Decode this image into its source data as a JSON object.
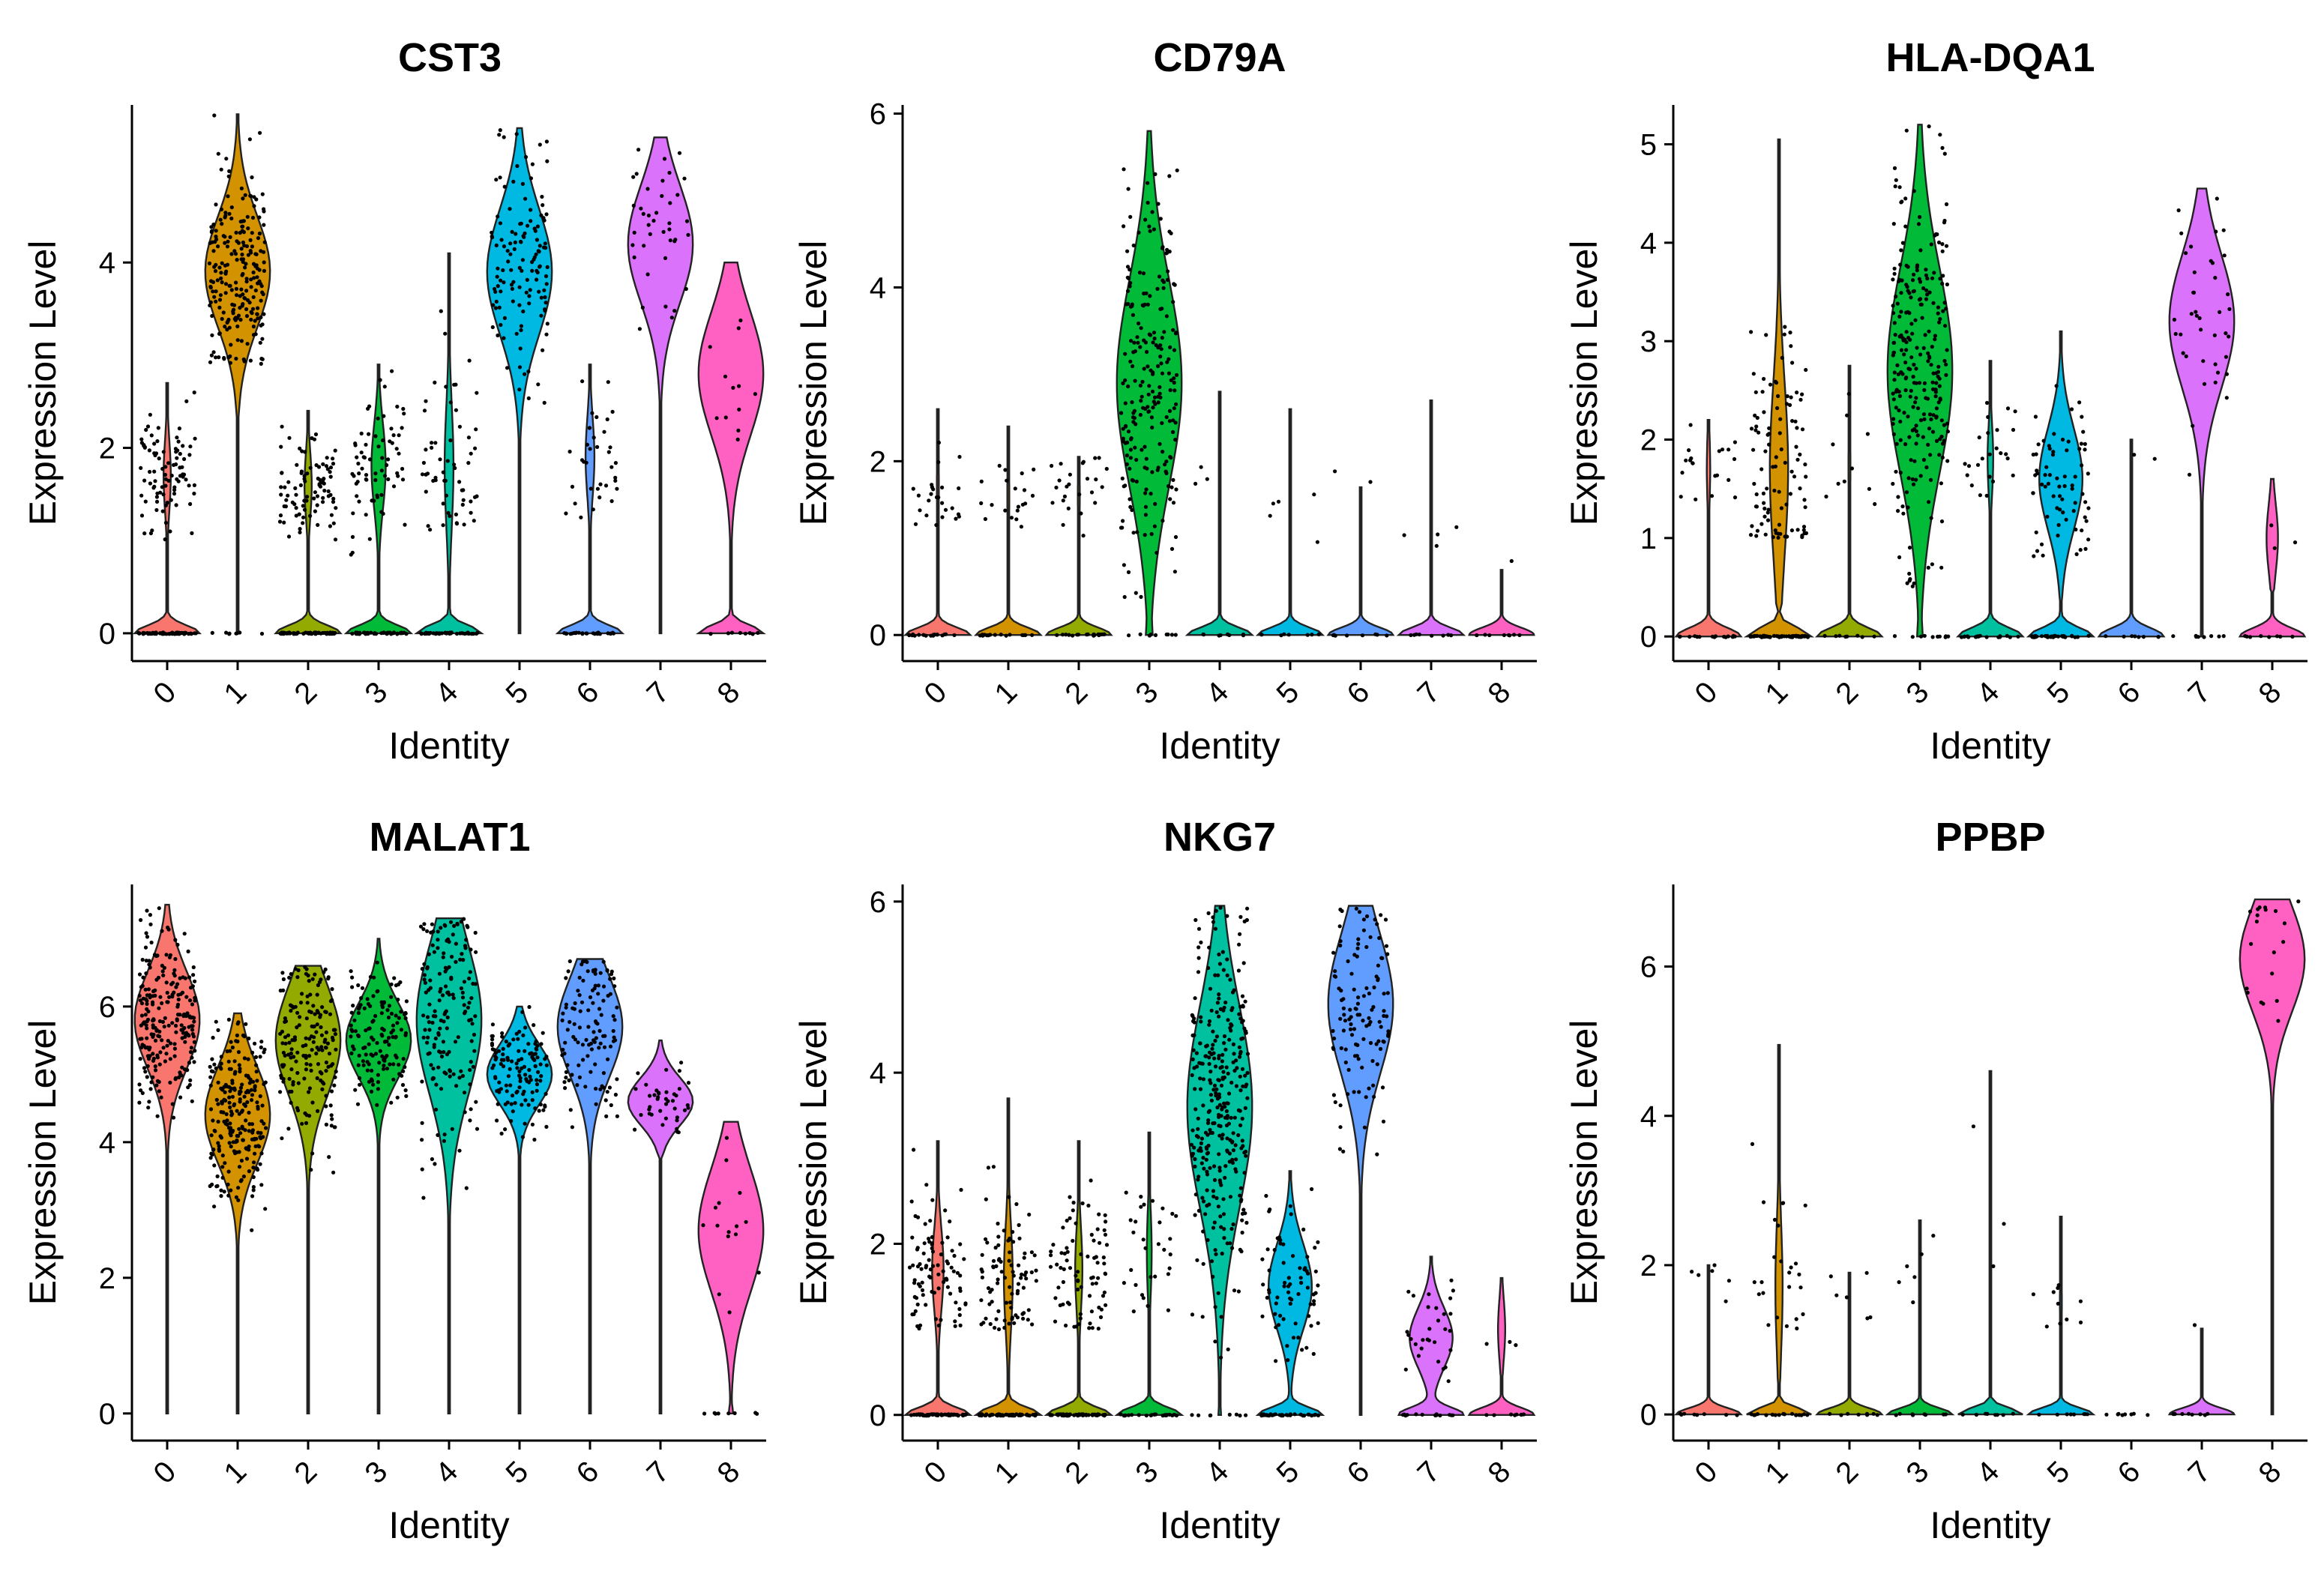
{
  "figure_title": "Violin plots of gene expression by cluster identity",
  "colors": {
    "0": "#F8766D",
    "1": "#D39200",
    "2": "#93AA00",
    "3": "#00BA38",
    "4": "#00C19F",
    "5": "#00B9E3",
    "6": "#619CFF",
    "7": "#DB72FB",
    "8": "#FF61C3"
  },
  "chart_data": [
    {
      "type": "violin",
      "title": "CST3",
      "xlabel": "Identity",
      "ylabel": "Expression Level",
      "categories": [
        "0",
        "1",
        "2",
        "3",
        "4",
        "5",
        "6",
        "7",
        "8"
      ],
      "ylim": [
        -0.3,
        5.7
      ],
      "yticks": [
        0,
        2,
        4
      ],
      "zero_fraction": [
        0.9,
        0.02,
        0.9,
        0.82,
        0.88,
        0.0,
        0.88,
        0.0,
        0.5
      ],
      "nonzero_median": [
        1.7,
        3.9,
        1.6,
        1.8,
        1.8,
        3.9,
        1.9,
        4.2,
        2.8
      ],
      "max": [
        2.7,
        5.6,
        2.4,
        2.9,
        4.1,
        5.45,
        2.9,
        5.35,
        4.0
      ],
      "min_nonzero": [
        1.0,
        2.9,
        1.0,
        0.8,
        1.1,
        2.4,
        1.0,
        2.5,
        1.0
      ],
      "n_points": [
        90,
        230,
        90,
        70,
        60,
        130,
        35,
        40,
        12
      ]
    },
    {
      "type": "violin",
      "title": "CD79A",
      "xlabel": "Identity",
      "ylabel": "Expression Level",
      "categories": [
        "0",
        "1",
        "2",
        "3",
        "4",
        "5",
        "6",
        "7",
        "8"
      ],
      "ylim": [
        -0.3,
        6.1
      ],
      "yticks": [
        0,
        2,
        4,
        6
      ],
      "zero_fraction": [
        0.97,
        0.97,
        0.97,
        0.05,
        0.99,
        0.98,
        0.99,
        0.98,
        0.98
      ],
      "nonzero_median": [
        1.7,
        1.6,
        1.6,
        2.9,
        1.9,
        1.3,
        1.7,
        1.1,
        0.75
      ],
      "max": [
        2.6,
        2.4,
        2.05,
        5.8,
        2.8,
        2.6,
        1.7,
        2.7,
        0.75
      ],
      "min_nonzero": [
        1.2,
        1.1,
        1.0,
        0.4,
        1.7,
        1.0,
        1.7,
        1.0,
        0.75
      ],
      "n_points": [
        25,
        20,
        25,
        230,
        3,
        5,
        2,
        4,
        1
      ]
    },
    {
      "type": "violin",
      "title": "HLA-DQA1",
      "xlabel": "Identity",
      "ylabel": "Expression Level",
      "categories": [
        "0",
        "1",
        "2",
        "3",
        "4",
        "5",
        "6",
        "7",
        "8"
      ],
      "ylim": [
        -0.25,
        5.4
      ],
      "yticks": [
        0,
        1,
        2,
        3,
        4,
        5
      ],
      "zero_fraction": [
        0.95,
        0.78,
        0.97,
        0.05,
        0.92,
        0.6,
        0.99,
        0.03,
        0.85
      ],
      "nonzero_median": [
        1.7,
        1.7,
        1.7,
        2.7,
        1.8,
        1.6,
        1.8,
        3.2,
        1.0
      ],
      "max": [
        2.2,
        5.05,
        2.75,
        5.2,
        2.8,
        3.1,
        2.0,
        4.55,
        1.6
      ],
      "min_nonzero": [
        1.0,
        1.0,
        1.1,
        0.5,
        1.3,
        0.8,
        1.8,
        1.5,
        0.75
      ],
      "n_points": [
        20,
        100,
        10,
        260,
        25,
        70,
        2,
        40,
        3
      ]
    },
    {
      "type": "violin",
      "title": "MALAT1",
      "xlabel": "Identity",
      "ylabel": "Expression Level",
      "categories": [
        "0",
        "1",
        "2",
        "3",
        "4",
        "5",
        "6",
        "7",
        "8"
      ],
      "ylim": [
        -0.4,
        7.8
      ],
      "yticks": [
        0,
        2,
        4,
        6
      ],
      "zero_fraction": [
        0,
        0,
        0,
        0,
        0,
        0,
        0,
        0,
        0.05
      ],
      "nonzero_median": [
        5.8,
        4.4,
        5.5,
        5.5,
        5.8,
        5.0,
        5.7,
        4.6,
        2.7
      ],
      "max": [
        7.5,
        5.9,
        6.6,
        7.0,
        7.3,
        6.0,
        6.7,
        5.5,
        4.3
      ],
      "min_nonzero": [
        4.3,
        2.7,
        3.0,
        4.5,
        2.4,
        4.0,
        3.4,
        4.1,
        0.2
      ],
      "n_points": [
        240,
        240,
        180,
        140,
        170,
        130,
        120,
        40,
        15
      ]
    },
    {
      "type": "violin",
      "title": "NKG7",
      "xlabel": "Identity",
      "ylabel": "Expression Level",
      "categories": [
        "0",
        "1",
        "2",
        "3",
        "4",
        "5",
        "6",
        "7",
        "8"
      ],
      "ylim": [
        -0.3,
        6.2
      ],
      "yticks": [
        0,
        2,
        4,
        6
      ],
      "zero_fraction": [
        0.85,
        0.88,
        0.9,
        0.93,
        0.03,
        0.6,
        0.0,
        0.6,
        0.9
      ],
      "nonzero_median": [
        1.7,
        1.6,
        1.7,
        1.9,
        3.6,
        1.5,
        4.8,
        0.9,
        1.0
      ],
      "max": [
        3.2,
        3.7,
        3.2,
        3.3,
        5.95,
        2.85,
        5.95,
        1.85,
        1.6
      ],
      "min_nonzero": [
        1.0,
        1.0,
        1.0,
        1.1,
        0.6,
        0.6,
        2.3,
        0.3,
        0.75
      ],
      "n_points": [
        90,
        90,
        80,
        30,
        330,
        70,
        120,
        30,
        3
      ]
    },
    {
      "type": "violin",
      "title": "PPBP",
      "xlabel": "Identity",
      "ylabel": "Expression Level",
      "categories": [
        "0",
        "1",
        "2",
        "3",
        "4",
        "5",
        "6",
        "7",
        "8"
      ],
      "ylim": [
        -0.35,
        7.1
      ],
      "yticks": [
        0,
        2,
        4,
        6
      ],
      "zero_fraction": [
        0.98,
        0.9,
        0.98,
        0.98,
        0.99,
        0.97,
        1.0,
        0.99,
        0.0
      ],
      "nonzero_median": [
        1.7,
        1.7,
        1.6,
        1.9,
        2.3,
        1.5,
        0,
        1.15,
        6.1
      ],
      "max": [
        2.0,
        4.95,
        1.9,
        2.6,
        4.6,
        2.65,
        0,
        1.15,
        6.9
      ],
      "min_nonzero": [
        1.4,
        1.1,
        1.1,
        1.4,
        1.8,
        1.1,
        0,
        1.15,
        3.7
      ],
      "n_points": [
        6,
        25,
        6,
        6,
        3,
        10,
        0,
        1,
        20
      ]
    }
  ]
}
